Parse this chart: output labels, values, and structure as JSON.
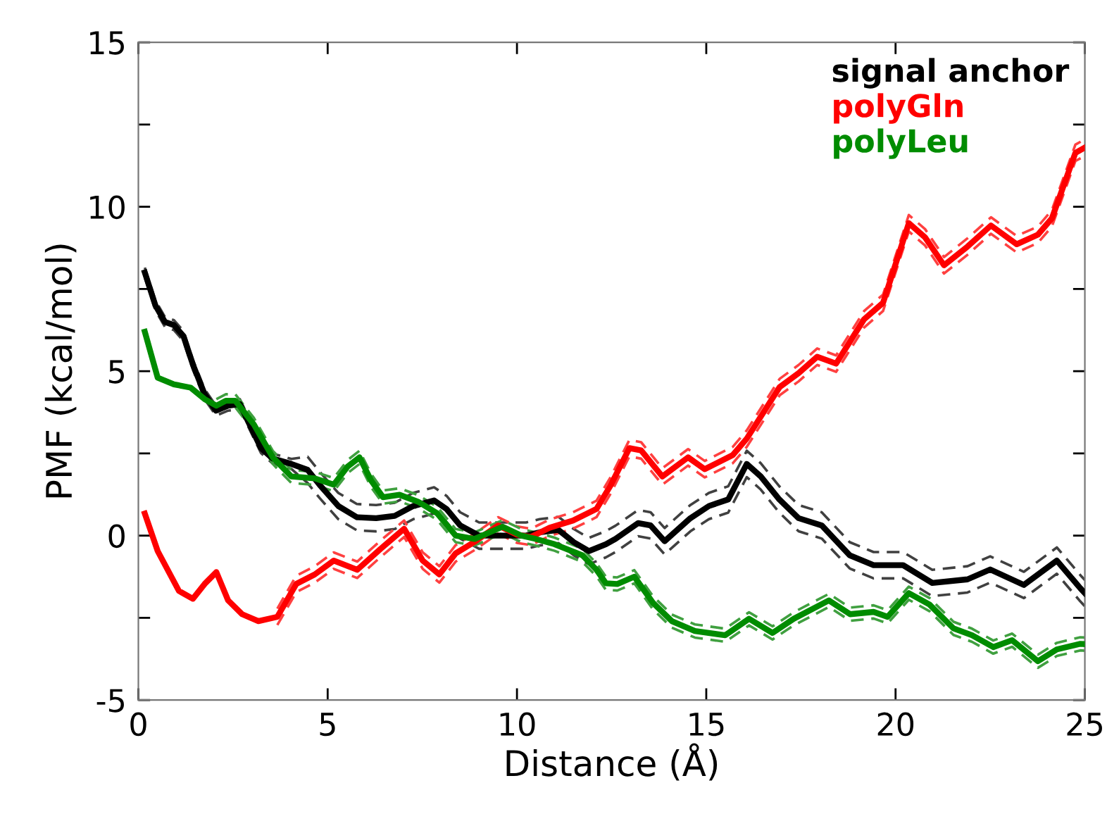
{
  "chart_data": {
    "type": "line",
    "xlabel": "Distance (Å)",
    "ylabel": "PMF (kcal/mol)",
    "xlim": [
      0,
      25
    ],
    "ylim": [
      -5,
      15
    ],
    "xticks": [
      0,
      5,
      10,
      15,
      20,
      25
    ],
    "yticks": [
      -5,
      {
        "value": -2.5,
        "label": null
      },
      0,
      {
        "value": 2.5,
        "label": null
      },
      5,
      {
        "value": 7.5,
        "label": null
      },
      10,
      {
        "value": 12.5,
        "label": null
      },
      15
    ],
    "grid": false,
    "legend": "top right",
    "marker": "none",
    "line_style": "solid",
    "series": [
      {
        "name": "signal anchor",
        "color": "#000000",
        "x": [
          0.17,
          0.45,
          0.7,
          0.94,
          1.19,
          1.44,
          1.75,
          2.05,
          2.37,
          2.68,
          2.93,
          3.24,
          3.54,
          4.04,
          4.47,
          4.79,
          5.28,
          5.77,
          6.28,
          6.77,
          7.26,
          7.81,
          8.14,
          8.5,
          9.0,
          9.62,
          10.24,
          10.6,
          11.1,
          11.5,
          11.9,
          12.35,
          12.6,
          13.2,
          13.53,
          13.9,
          14.58,
          15.07,
          15.58,
          16.07,
          16.44,
          16.93,
          17.44,
          18.05,
          18.79,
          19.42,
          20.2,
          20.97,
          21.9,
          22.5,
          23.39,
          24.26,
          24.88,
          25.0
        ],
        "values": [
          8.0,
          7.0,
          6.5,
          6.4,
          6.07,
          5.2,
          4.3,
          3.8,
          3.95,
          4.0,
          3.4,
          2.66,
          2.35,
          2.18,
          2.0,
          1.54,
          0.9,
          0.56,
          0.53,
          0.6,
          0.9,
          1.07,
          0.81,
          0.31,
          0.0,
          0.0,
          0.0,
          0.1,
          0.17,
          -0.2,
          -0.47,
          -0.26,
          -0.1,
          0.38,
          0.31,
          -0.17,
          0.53,
          0.9,
          1.1,
          2.18,
          1.8,
          1.1,
          0.53,
          0.31,
          -0.6,
          -0.9,
          -0.9,
          -1.44,
          -1.33,
          -1.03,
          -1.5,
          -0.76,
          -1.6,
          -1.75
        ]
      },
      {
        "color": "#404040",
        "line_style": "dashed",
        "x": [
          0.17,
          0.45,
          0.7,
          0.94,
          1.19,
          1.44,
          1.75,
          2.05,
          2.37,
          2.68,
          2.93,
          3.24,
          3.54,
          4.04,
          4.47,
          4.79,
          5.28,
          5.77,
          6.28,
          6.77,
          7.26,
          7.81,
          8.14,
          8.5,
          9.0,
          9.62,
          10.24,
          10.6,
          11.1,
          11.5,
          11.9,
          12.35,
          12.6,
          13.2,
          13.53,
          13.9,
          14.58,
          15.07,
          15.58,
          16.07,
          16.44,
          16.93,
          17.44,
          18.05,
          18.79,
          19.42,
          20.2,
          20.97,
          21.9,
          22.5,
          23.39,
          24.26,
          24.88,
          25.0
        ],
        "values": [
          8.15,
          7.15,
          6.65,
          6.55,
          6.22,
          5.35,
          4.45,
          3.95,
          4.1,
          4.15,
          3.55,
          2.81,
          2.5,
          2.33,
          2.4,
          1.94,
          1.3,
          0.96,
          0.93,
          1.0,
          1.3,
          1.47,
          1.21,
          0.71,
          0.4,
          0.4,
          0.4,
          0.5,
          0.57,
          0.2,
          -0.07,
          0.14,
          0.3,
          0.78,
          0.71,
          0.23,
          0.93,
          1.3,
          1.5,
          2.58,
          2.2,
          1.5,
          0.93,
          0.71,
          -0.2,
          -0.5,
          -0.5,
          -1.04,
          -0.93,
          -0.63,
          -1.1,
          -0.36,
          -1.2,
          -1.35
        ]
      },
      {
        "color": "#404040",
        "line_style": "dashed",
        "x": [
          0.17,
          0.45,
          0.7,
          0.94,
          1.19,
          1.44,
          1.75,
          2.05,
          2.37,
          2.68,
          2.93,
          3.24,
          3.54,
          4.04,
          4.47,
          4.79,
          5.28,
          5.77,
          6.28,
          6.77,
          7.26,
          7.81,
          8.14,
          8.5,
          9.0,
          9.62,
          10.24,
          10.6,
          11.1,
          11.5,
          11.9,
          12.35,
          12.6,
          13.2,
          13.53,
          13.9,
          14.58,
          15.07,
          15.58,
          16.07,
          16.44,
          16.93,
          17.44,
          18.05,
          18.79,
          19.42,
          20.2,
          20.97,
          21.9,
          22.5,
          23.39,
          24.26,
          24.88,
          25.0
        ],
        "values": [
          7.85,
          6.85,
          6.35,
          6.25,
          5.92,
          5.05,
          4.15,
          3.65,
          3.8,
          3.85,
          3.25,
          2.51,
          2.2,
          2.03,
          1.6,
          1.14,
          0.5,
          0.16,
          0.13,
          0.2,
          0.5,
          0.67,
          0.41,
          -0.09,
          -0.4,
          -0.4,
          -0.4,
          -0.3,
          -0.23,
          -0.6,
          -0.87,
          -0.66,
          -0.5,
          -0.02,
          -0.09,
          -0.57,
          0.13,
          0.5,
          0.7,
          1.78,
          1.4,
          0.7,
          0.13,
          -0.09,
          -1.0,
          -1.3,
          -1.3,
          -1.84,
          -1.73,
          -1.43,
          -1.9,
          -1.16,
          -2.0,
          -2.15
        ]
      },
      {
        "name": "polyGln",
        "color": "#ff0000",
        "x": [
          0.17,
          0.51,
          1.07,
          1.44,
          1.75,
          2.06,
          2.37,
          2.74,
          3.17,
          3.67,
          4.17,
          4.66,
          5.16,
          5.78,
          6.4,
          7.02,
          7.51,
          7.95,
          8.38,
          8.88,
          9.5,
          10.0,
          10.37,
          10.86,
          11.48,
          12.1,
          12.47,
          12.97,
          13.28,
          13.84,
          14.52,
          14.96,
          15.7,
          16.07,
          16.94,
          17.44,
          17.93,
          18.43,
          19.17,
          19.67,
          20.35,
          20.78,
          21.28,
          21.9,
          22.52,
          23.2,
          23.76,
          24.13,
          24.75,
          25.0
        ],
        "values": [
          0.67,
          -0.47,
          -1.68,
          -1.92,
          -1.47,
          -1.11,
          -1.97,
          -2.39,
          -2.6,
          -2.47,
          -1.47,
          -1.18,
          -0.76,
          -1.04,
          -0.4,
          0.21,
          -0.76,
          -1.18,
          -0.54,
          -0.19,
          0.31,
          0.03,
          -0.04,
          0.24,
          0.46,
          0.81,
          1.52,
          2.66,
          2.59,
          1.8,
          2.38,
          2.02,
          2.45,
          2.95,
          4.52,
          4.94,
          5.44,
          5.23,
          6.58,
          7.08,
          9.5,
          9.07,
          8.22,
          8.79,
          9.43,
          8.86,
          9.15,
          9.65,
          11.64,
          11.8
        ]
      },
      {
        "color": "#ff4040",
        "line_style": "dashed",
        "x": [
          3.67,
          4.17,
          4.66,
          5.16,
          5.78,
          6.4,
          7.02,
          7.51,
          7.95,
          8.38,
          8.88,
          9.5,
          10.0,
          10.37,
          10.86,
          11.48,
          12.1,
          12.47,
          12.97,
          13.28,
          13.84,
          14.52,
          14.96,
          15.7,
          16.07,
          16.94,
          17.44,
          17.93,
          18.43,
          19.17,
          19.67,
          20.35,
          20.78,
          21.28,
          21.9,
          22.52,
          23.2,
          23.76,
          24.13,
          24.75,
          25.0
        ],
        "values": [
          -2.22,
          -1.22,
          -0.93,
          -0.51,
          -0.79,
          -0.15,
          0.46,
          -0.51,
          -0.93,
          -0.29,
          0.06,
          0.56,
          0.28,
          0.21,
          0.49,
          0.71,
          1.06,
          1.77,
          2.91,
          2.84,
          2.05,
          2.63,
          2.27,
          2.7,
          3.2,
          4.77,
          5.19,
          5.69,
          5.48,
          6.83,
          7.33,
          9.75,
          9.32,
          8.47,
          9.04,
          9.68,
          9.11,
          9.4,
          9.9,
          11.89,
          12.05
        ]
      },
      {
        "color": "#ff4040",
        "line_style": "dashed",
        "x": [
          3.67,
          4.17,
          4.66,
          5.16,
          5.78,
          6.4,
          7.02,
          7.51,
          7.95,
          8.38,
          8.88,
          9.5,
          10.0,
          10.37,
          10.86,
          11.48,
          12.1,
          12.47,
          12.97,
          13.28,
          13.84,
          14.52,
          14.96,
          15.7,
          16.07,
          16.94,
          17.44,
          17.93,
          18.43,
          19.17,
          19.67,
          20.35,
          20.78,
          21.28,
          21.9,
          22.52,
          23.2,
          23.76,
          24.13,
          24.75,
          25.0
        ],
        "values": [
          -2.72,
          -1.72,
          -1.43,
          -1.01,
          -1.29,
          -0.65,
          -0.04,
          -1.01,
          -1.43,
          -0.79,
          -0.44,
          0.06,
          -0.22,
          -0.29,
          -0.01,
          0.21,
          0.56,
          1.27,
          2.41,
          2.34,
          1.55,
          2.13,
          1.77,
          2.2,
          2.7,
          4.27,
          4.69,
          5.19,
          4.98,
          6.33,
          6.83,
          9.25,
          8.82,
          7.97,
          8.54,
          9.18,
          8.61,
          8.9,
          9.4,
          11.39,
          11.55
        ]
      },
      {
        "name": "polyLeu",
        "color": "#008c00",
        "x": [
          0.17,
          0.51,
          0.94,
          1.38,
          1.75,
          2.06,
          2.31,
          2.56,
          3.05,
          3.55,
          4.04,
          4.66,
          5.16,
          5.53,
          5.84,
          6.15,
          6.46,
          6.9,
          7.39,
          7.89,
          8.38,
          8.88,
          9.62,
          10.12,
          10.49,
          10.99,
          11.73,
          12.1,
          12.35,
          12.65,
          13.1,
          13.59,
          14.09,
          14.7,
          15.5,
          16.13,
          16.75,
          17.31,
          18.24,
          18.8,
          19.42,
          19.79,
          20.35,
          20.9,
          21.53,
          22.02,
          22.58,
          23.08,
          23.76,
          24.26,
          24.88,
          25.0
        ],
        "values": [
          6.2,
          4.8,
          4.6,
          4.5,
          4.15,
          3.95,
          4.1,
          4.1,
          3.38,
          2.38,
          1.8,
          1.74,
          1.55,
          2.1,
          2.38,
          1.67,
          1.17,
          1.24,
          1.03,
          0.68,
          0.0,
          -0.1,
          0.27,
          0.0,
          -0.1,
          -0.26,
          -0.6,
          -1.04,
          -1.45,
          -1.47,
          -1.25,
          -2.04,
          -2.6,
          -2.9,
          -3.03,
          -2.53,
          -2.96,
          -2.53,
          -1.97,
          -2.39,
          -2.32,
          -2.47,
          -1.75,
          -2.1,
          -2.82,
          -3.03,
          -3.39,
          -3.18,
          -3.82,
          -3.46,
          -3.29,
          -3.3
        ]
      },
      {
        "color": "#40a040",
        "line_style": "dashed",
        "x": [
          2.06,
          2.31,
          2.56,
          3.05,
          3.55,
          4.04,
          4.66,
          5.16,
          5.53,
          5.84,
          6.15,
          6.46,
          6.9,
          7.39,
          7.89,
          8.38,
          8.88,
          9.62,
          10.12,
          10.49,
          10.99,
          11.73,
          12.1,
          12.35,
          12.65,
          13.1,
          13.59,
          14.09,
          14.7,
          15.5,
          16.13,
          16.75,
          17.31,
          18.24,
          18.8,
          19.42,
          19.79,
          20.35,
          20.9,
          21.53,
          22.02,
          22.58,
          23.08,
          23.76,
          24.26,
          24.88,
          25.0
        ],
        "values": [
          4.15,
          4.3,
          4.3,
          3.58,
          2.58,
          2.0,
          1.94,
          1.75,
          2.3,
          2.58,
          1.87,
          1.37,
          1.44,
          1.23,
          0.88,
          0.2,
          0.1,
          0.47,
          0.2,
          0.1,
          -0.06,
          -0.4,
          -0.84,
          -1.25,
          -1.27,
          -1.05,
          -1.84,
          -2.4,
          -2.7,
          -2.83,
          -2.33,
          -2.76,
          -2.33,
          -1.77,
          -2.19,
          -2.12,
          -2.27,
          -1.55,
          -1.9,
          -2.62,
          -2.83,
          -3.19,
          -2.98,
          -3.62,
          -3.26,
          -3.09,
          -3.1
        ]
      },
      {
        "color": "#40a040",
        "line_style": "dashed",
        "x": [
          2.06,
          2.31,
          2.56,
          3.05,
          3.55,
          4.04,
          4.66,
          5.16,
          5.53,
          5.84,
          6.15,
          6.46,
          6.9,
          7.39,
          7.89,
          8.38,
          8.88,
          9.62,
          10.12,
          10.49,
          10.99,
          11.73,
          12.1,
          12.35,
          12.65,
          13.1,
          13.59,
          14.09,
          14.7,
          15.5,
          16.13,
          16.75,
          17.31,
          18.24,
          18.8,
          19.42,
          19.79,
          20.35,
          20.9,
          21.53,
          22.02,
          22.58,
          23.08,
          23.76,
          24.26,
          24.88,
          25.0
        ],
        "values": [
          3.75,
          3.9,
          3.9,
          3.18,
          2.18,
          1.6,
          1.54,
          1.35,
          1.9,
          2.18,
          1.47,
          0.97,
          1.04,
          0.83,
          0.48,
          -0.2,
          -0.3,
          0.07,
          -0.2,
          -0.3,
          -0.46,
          -0.8,
          -1.24,
          -1.65,
          -1.67,
          -1.45,
          -2.24,
          -2.8,
          -3.1,
          -3.23,
          -2.73,
          -3.16,
          -2.73,
          -2.17,
          -2.59,
          -2.52,
          -2.67,
          -1.95,
          -2.3,
          -3.02,
          -3.23,
          -3.59,
          -3.38,
          -4.02,
          -3.66,
          -3.49,
          -3.5
        ]
      }
    ]
  }
}
